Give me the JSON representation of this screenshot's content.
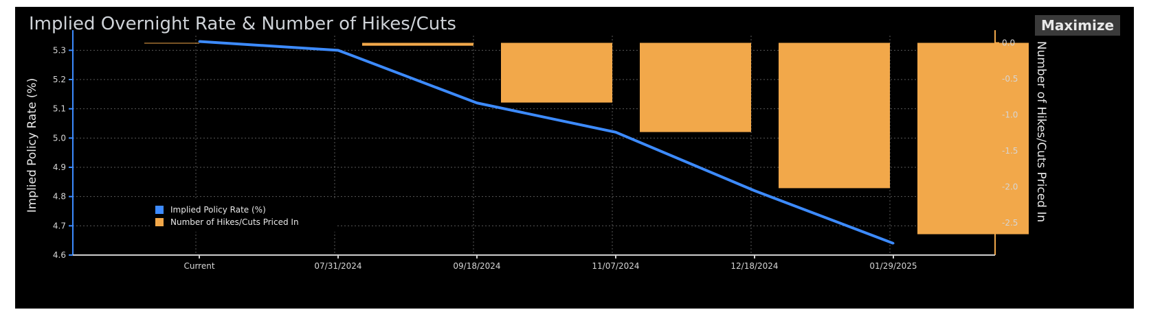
{
  "panel": {
    "title": "Implied Overnight Rate & Number of Hikes/Cuts",
    "maximize_label": "Maximize"
  },
  "colors": {
    "background": "#000000",
    "line": "#3d8bff",
    "bar": "#f2a84a",
    "grid": "#5a5a5a",
    "axis": "#3d8bff",
    "axis_right": "#f2a84a"
  },
  "chart_data": {
    "type": "bar+line",
    "categories": [
      "Current",
      "07/31/2024",
      "09/18/2024",
      "11/07/2024",
      "12/18/2024",
      "01/29/2025"
    ],
    "series": [
      {
        "name": "Implied Policy Rate (%)",
        "type": "line",
        "axis": "left",
        "values": [
          5.33,
          5.3,
          5.12,
          5.02,
          4.82,
          4.64
        ]
      },
      {
        "name": "Number of Hikes/Cuts Priced In",
        "type": "bar",
        "axis": "right",
        "values": [
          0.0,
          -0.04,
          -0.83,
          -1.24,
          -2.02,
          -2.66
        ]
      }
    ],
    "ylabel": "Implied Policy Rate (%)",
    "y2label": "Number of Hikes/Cuts Priced In",
    "ylim": [
      4.6,
      5.35
    ],
    "y_ticks": [
      "4.6",
      "4.7",
      "4.8",
      "4.9",
      "5.0",
      "5.1",
      "5.2",
      "5.3"
    ],
    "y2lim": [
      -2.95,
      0.1
    ],
    "y2_ticks": [
      "0.0",
      "-0.5",
      "-1.0",
      "-1.5",
      "-2.0",
      "-2.5"
    ],
    "grid": true,
    "legend_position": "bottom-left"
  }
}
